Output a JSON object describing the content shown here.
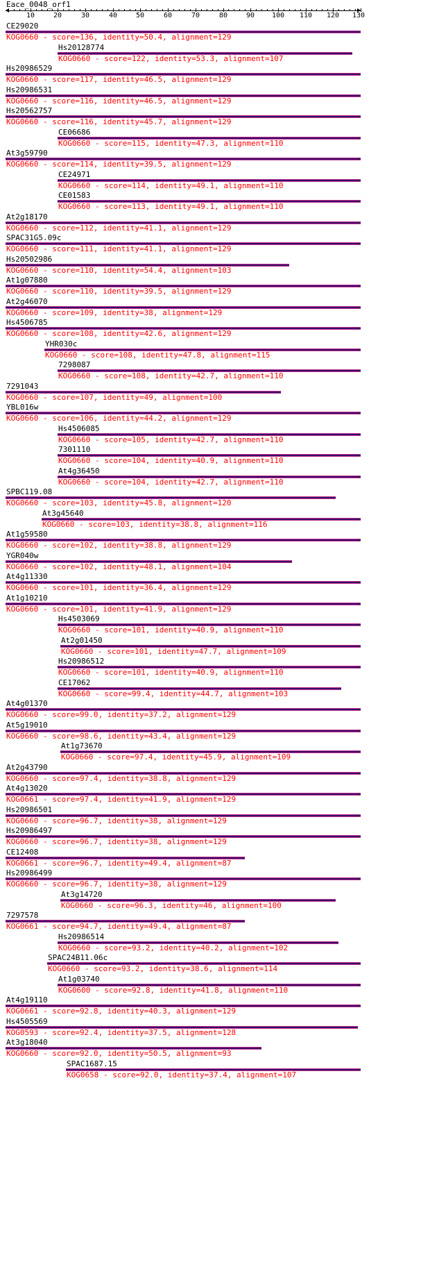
{
  "query_name": "Eace_0048_orf1",
  "axis": {
    "min": 1,
    "max": 130,
    "ticks": [
      10,
      20,
      30,
      40,
      50,
      60,
      70,
      80,
      90,
      100,
      110,
      120,
      130
    ]
  },
  "colors": {
    "bar_fill": "#3a0e6a",
    "bar_border": "#c0308a",
    "info_text": "#ff0000",
    "name_text": "#000000"
  },
  "hits": [
    {
      "name": "CE29020",
      "start": 1,
      "end": 130,
      "info": "KOG0660 - score=136, identity=50.4, alignment=129"
    },
    {
      "name": "Hs20128774",
      "start": 20,
      "end": 127,
      "info": "KOG0660 - score=122, identity=53.3, alignment=107"
    },
    {
      "name": "Hs20986529",
      "start": 1,
      "end": 130,
      "info": "KOG0660 - score=117, identity=46.5, alignment=129"
    },
    {
      "name": "Hs20986531",
      "start": 1,
      "end": 130,
      "info": "KOG0660 - score=116, identity=46.5, alignment=129"
    },
    {
      "name": "Hs20562757",
      "start": 1,
      "end": 130,
      "info": "KOG0660 - score=116, identity=45.7, alignment=129"
    },
    {
      "name": "CE06686",
      "start": 20,
      "end": 130,
      "info": "KOG0660 - score=115, identity=47.3, alignment=110"
    },
    {
      "name": "At3g59790",
      "start": 1,
      "end": 130,
      "info": "KOG0660 - score=114, identity=39.5, alignment=129"
    },
    {
      "name": "CE24971",
      "start": 20,
      "end": 130,
      "info": "KOG0660 - score=114, identity=49.1, alignment=110"
    },
    {
      "name": "CE01583",
      "start": 20,
      "end": 130,
      "info": "KOG0660 - score=113, identity=49.1, alignment=110"
    },
    {
      "name": "At2g18170",
      "start": 1,
      "end": 130,
      "info": "KOG0660 - score=112, identity=41.1, alignment=129"
    },
    {
      "name": "SPAC31G5.09c",
      "start": 1,
      "end": 130,
      "info": "KOG0660 - score=111, identity=41.1, alignment=129"
    },
    {
      "name": "Hs20502986",
      "start": 1,
      "end": 104,
      "info": "KOG0660 - score=110, identity=54.4, alignment=103"
    },
    {
      "name": "At1g07880",
      "start": 1,
      "end": 130,
      "info": "KOG0660 - score=110, identity=39.5, alignment=129"
    },
    {
      "name": "At2g46070",
      "start": 1,
      "end": 130,
      "info": "KOG0660 - score=109, identity=38, alignment=129"
    },
    {
      "name": "Hs4506785",
      "start": 1,
      "end": 130,
      "info": "KOG0660 - score=108, identity=42.6, alignment=129"
    },
    {
      "name": "YHR030c",
      "start": 15,
      "end": 130,
      "info": "KOG0660 - score=108, identity=47.8, alignment=115"
    },
    {
      "name": "7298087",
      "start": 20,
      "end": 130,
      "info": "KOG0660 - score=108, identity=42.7, alignment=110"
    },
    {
      "name": "7291043",
      "start": 1,
      "end": 101,
      "info": "KOG0660 - score=107, identity=49, alignment=100"
    },
    {
      "name": "YBL016w",
      "start": 1,
      "end": 130,
      "info": "KOG0660 - score=106, identity=44.2, alignment=129"
    },
    {
      "name": "Hs4506085",
      "start": 20,
      "end": 130,
      "info": "KOG0660 - score=105, identity=42.7, alignment=110"
    },
    {
      "name": "7301110",
      "start": 20,
      "end": 130,
      "info": "KOG0660 - score=104, identity=40.9, alignment=110"
    },
    {
      "name": "At4g36450",
      "start": 20,
      "end": 130,
      "info": "KOG0660 - score=104, identity=42.7, alignment=110"
    },
    {
      "name": "SPBC119.08",
      "start": 1,
      "end": 121,
      "info": "KOG0660 - score=103, identity=45.8, alignment=120"
    },
    {
      "name": "At3g45640",
      "start": 14,
      "end": 130,
      "info": "KOG0660 - score=103, identity=38.8, alignment=116"
    },
    {
      "name": "At1g59580",
      "start": 1,
      "end": 130,
      "info": "KOG0660 - score=102, identity=38.8, alignment=129"
    },
    {
      "name": "YGR040w",
      "start": 1,
      "end": 105,
      "info": "KOG0660 - score=102, identity=48.1, alignment=104"
    },
    {
      "name": "At4g11330",
      "start": 1,
      "end": 130,
      "info": "KOG0660 - score=101, identity=36.4, alignment=129"
    },
    {
      "name": "At1g10210",
      "start": 1,
      "end": 130,
      "info": "KOG0660 - score=101, identity=41.9, alignment=129"
    },
    {
      "name": "Hs4503069",
      "start": 20,
      "end": 130,
      "info": "KOG0660 - score=101, identity=40.9, alignment=110"
    },
    {
      "name": "At2g01450",
      "start": 21,
      "end": 130,
      "info": "KOG0660 - score=101, identity=47.7, alignment=109"
    },
    {
      "name": "Hs20986512",
      "start": 20,
      "end": 130,
      "info": "KOG0660 - score=101, identity=40.9, alignment=110"
    },
    {
      "name": "CE17062",
      "start": 20,
      "end": 123,
      "info": "KOG0660 - score=99.4, identity=44.7, alignment=103"
    },
    {
      "name": "At4g01370",
      "start": 1,
      "end": 130,
      "info": "KOG0660 - score=99.0, identity=37.2, alignment=129"
    },
    {
      "name": "At5g19010",
      "start": 1,
      "end": 130,
      "info": "KOG0660 - score=98.6, identity=43.4, alignment=129"
    },
    {
      "name": "At1g73670",
      "start": 21,
      "end": 130,
      "info": "KOG0660 - score=97.4, identity=45.9, alignment=109"
    },
    {
      "name": "At2g43790",
      "start": 1,
      "end": 130,
      "info": "KOG0660 - score=97.4, identity=38.8, alignment=129"
    },
    {
      "name": "At4g13020",
      "start": 1,
      "end": 130,
      "info": "KOG0661 - score=97.4, identity=41.9, alignment=129"
    },
    {
      "name": "Hs20986501",
      "start": 1,
      "end": 130,
      "info": "KOG0660 - score=96.7, identity=38, alignment=129"
    },
    {
      "name": "Hs20986497",
      "start": 1,
      "end": 130,
      "info": "KOG0660 - score=96.7, identity=38, alignment=129"
    },
    {
      "name": "CE12408",
      "start": 1,
      "end": 88,
      "info": "KOG0661 - score=96.7, identity=49.4, alignment=87"
    },
    {
      "name": "Hs20986499",
      "start": 1,
      "end": 130,
      "info": "KOG0660 - score=96.7, identity=38, alignment=129"
    },
    {
      "name": "At3g14720",
      "start": 21,
      "end": 121,
      "info": "KOG0660 - score=96.3, identity=46, alignment=100"
    },
    {
      "name": "7297578",
      "start": 1,
      "end": 88,
      "info": "KOG0661 - score=94.7, identity=49.4, alignment=87"
    },
    {
      "name": "Hs20986514",
      "start": 20,
      "end": 122,
      "info": "KOG0660 - score=93.2, identity=40.2, alignment=102"
    },
    {
      "name": "SPAC24B11.06c",
      "start": 16,
      "end": 130,
      "info": "KOG0660 - score=93.2, identity=38.6, alignment=114"
    },
    {
      "name": "At1g03740",
      "start": 20,
      "end": 130,
      "info": "KOG0600 - score=92.8, identity=41.8, alignment=110"
    },
    {
      "name": "At4g19110",
      "start": 1,
      "end": 130,
      "info": "KOG0661 - score=92.8, identity=40.3, alignment=129"
    },
    {
      "name": "Hs4505569",
      "start": 1,
      "end": 129,
      "info": "KOG0593 - score=92.4, identity=37.5, alignment=128"
    },
    {
      "name": "At3g18040",
      "start": 1,
      "end": 94,
      "info": "KOG0660 - score=92.0, identity=50.5, alignment=93"
    },
    {
      "name": "SPAC1687.15",
      "start": 23,
      "end": 130,
      "info": "KOG0658 - score=92.0, identity=37.4, alignment=107"
    }
  ]
}
